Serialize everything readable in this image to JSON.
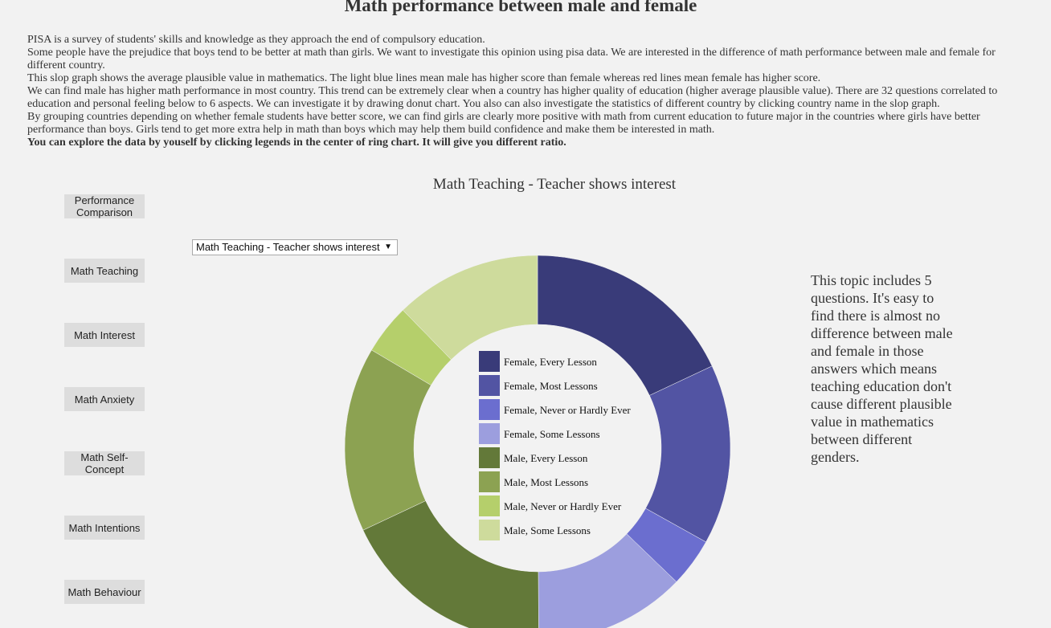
{
  "page": {
    "title": "Math performance between male and female",
    "intro": [
      "PISA is a survey of students' skills and knowledge as they approach the end of compulsory education.",
      "Some people have the prejudice that boys tend to be better at math than girls. We want to investigate this opinion using pisa data. We are interested in the difference of math performance between male and female for different country.",
      "This slop graph shows the average plausible value in mathematics. The light blue lines mean male has higher score than female whereas red lines mean female has higher score.",
      "We can find male has higher math performance in most country. This trend can be extremely clear when a country has higher quality of education (higher average plausible value). There are 32 questions correlated to education and personal feeling below to 6 aspects. We can investigate it by drawing donut chart. You also can also investigate the statistics of different country by clicking country name in the slop graph.",
      "By grouping countries depending on whether female students have better score, we can find girls are clearly more positive with math from current education to future major in the countries where girls have better performance than boys. Girls tend to get more extra help in math than boys which may help them build confidence and make them be interested in math."
    ],
    "intro_bold": "You can explore the data by youself by clicking legends in the center of ring chart. It will give you different ratio."
  },
  "sidebar": {
    "buttons": [
      {
        "label": "Performance Comparison"
      },
      {
        "label": "Math Teaching"
      },
      {
        "label": "Math Interest"
      },
      {
        "label": "Math Anxiety"
      },
      {
        "label": "Math Self-Concept"
      },
      {
        "label": "Math Intentions"
      },
      {
        "label": "Math Behaviour"
      }
    ]
  },
  "dropdown": {
    "selected": "Math Teaching - Teacher shows interest",
    "caret": "▼"
  },
  "side_note": "This topic includes 5 questions. It's easy to find there is almost no difference between male and female in those answers which means teaching education don't cause different plausible value in mathematics between different genders.",
  "chart_data": {
    "type": "pie",
    "variant": "donut",
    "title": "Math Teaching - Teacher shows interest",
    "legend_position": "center",
    "categories": [
      "Female, Every Lesson",
      "Female, Most Lessons",
      "Female, Never or Hardly Ever",
      "Female, Some Lessons",
      "Male, Every Lesson",
      "Male, Most Lessons",
      "Male, Never or Hardly Ever",
      "Male, Some Lessons"
    ],
    "values": [
      18.0,
      15.1,
      4.1,
      12.7,
      18.1,
      15.5,
      4.2,
      12.3
    ],
    "colors": [
      "#393b79",
      "#5254a3",
      "#6b6ecf",
      "#9c9ede",
      "#637939",
      "#8ca252",
      "#b5cf6b",
      "#cedb9c"
    ]
  }
}
